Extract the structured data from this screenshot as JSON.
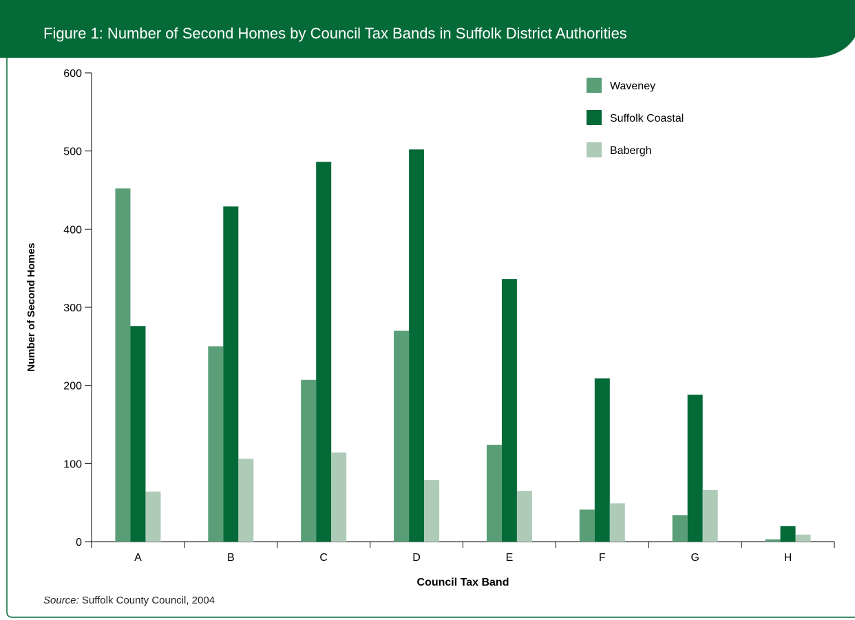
{
  "figure_title": "Figure 1:  Number of Second Homes by Council Tax Bands in Suffolk District Authorities",
  "source_label": "Source:",
  "source_text": "Suffolk County Council, 2004",
  "colors": {
    "header": "#046a38",
    "waveney": "#5a9e78",
    "suffolk_coastal": "#046a38",
    "babergh": "#aecbb8"
  },
  "chart_data": {
    "type": "bar",
    "title": "Number of Second Homes by Council Tax Bands in Suffolk District Authorities",
    "xlabel": "Council Tax Band",
    "ylabel": "Number of Second Homes",
    "ylim": [
      0,
      600
    ],
    "yticks": [
      0,
      100,
      200,
      300,
      400,
      500,
      600
    ],
    "categories": [
      "A",
      "B",
      "C",
      "D",
      "E",
      "F",
      "G",
      "H"
    ],
    "legend_position": "top-right",
    "grid": false,
    "series": [
      {
        "name": "Waveney",
        "color": "#5a9e78",
        "values": [
          452,
          250,
          207,
          270,
          124,
          41,
          34,
          3
        ]
      },
      {
        "name": "Suffolk Coastal",
        "color": "#046a38",
        "values": [
          276,
          429,
          486,
          502,
          336,
          209,
          188,
          20
        ]
      },
      {
        "name": "Babergh",
        "color": "#aecbb8",
        "values": [
          64,
          106,
          114,
          79,
          65,
          49,
          66,
          9
        ]
      }
    ]
  }
}
